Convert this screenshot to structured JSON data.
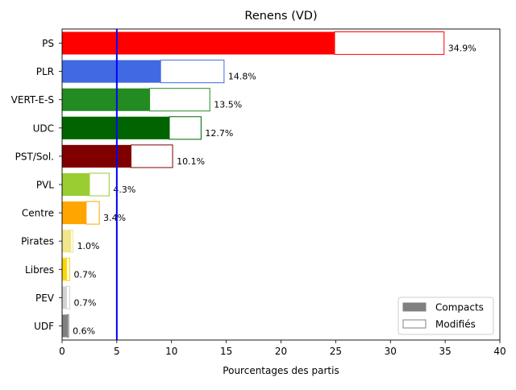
{
  "chart_data": {
    "type": "bar",
    "orientation": "horizontal",
    "title": "Renens (VD)",
    "xlabel": "Pourcentages des partis",
    "ylabel": "",
    "xlim": [
      0,
      40
    ],
    "xticks": [
      0,
      5,
      10,
      15,
      20,
      25,
      30,
      35,
      40
    ],
    "reference_line": {
      "x": 5,
      "color": "#0000ff"
    },
    "grid": false,
    "legend": {
      "placement": "bottom-right",
      "entries": [
        {
          "label": "Compacts",
          "style": "filled",
          "color": "#808080"
        },
        {
          "label": "Modifiés",
          "style": "outline",
          "color": "#808080"
        }
      ]
    },
    "categories": [
      "PS",
      "PLR",
      "VERT-E-S",
      "UDC",
      "PST/Sol.",
      "PVL",
      "Centre",
      "Pirates",
      "Libres",
      "PEV",
      "UDF"
    ],
    "colors": [
      "#ff0000",
      "#4169e1",
      "#228b22",
      "#006400",
      "#800000",
      "#9acd32",
      "#ffa500",
      "#f0e68c",
      "#ffd700",
      "#d3d3d3",
      "#808080"
    ],
    "series": [
      {
        "name": "Compacts",
        "values": [
          24.9,
          9.0,
          8.0,
          9.8,
          6.3,
          2.5,
          2.2,
          0.8,
          0.4,
          0.4,
          0.5
        ]
      },
      {
        "name": "Modifiés",
        "values": [
          10.0,
          5.8,
          5.5,
          2.9,
          3.8,
          1.8,
          1.2,
          0.2,
          0.3,
          0.3,
          0.1
        ]
      }
    ],
    "totals": [
      34.9,
      14.8,
      13.5,
      12.7,
      10.1,
      4.3,
      3.4,
      1.0,
      0.7,
      0.7,
      0.6
    ],
    "data_labels": [
      "34.9%",
      "14.8%",
      "13.5%",
      "12.7%",
      "10.1%",
      "4.3%",
      "3.4%",
      "1.0%",
      "0.7%",
      "0.7%",
      "0.6%"
    ]
  }
}
